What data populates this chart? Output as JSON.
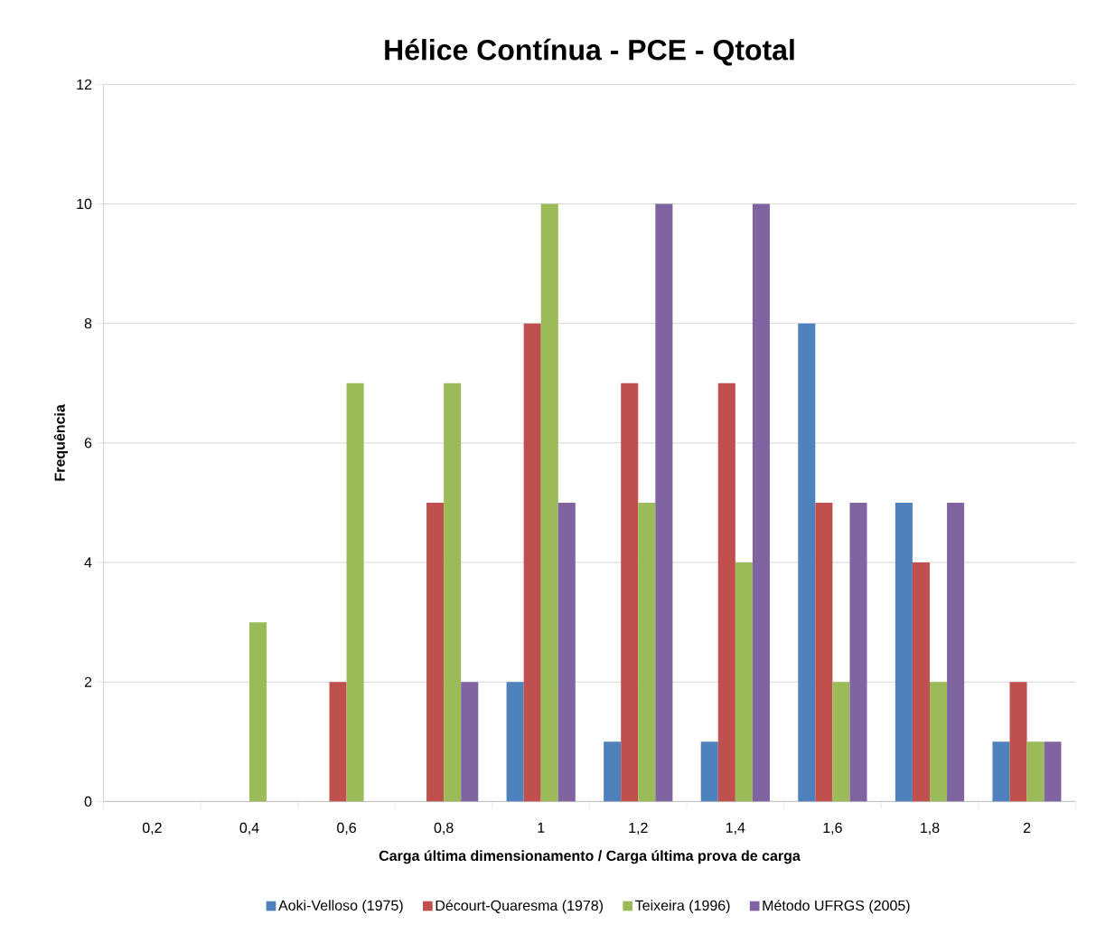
{
  "chart_data": {
    "type": "bar",
    "title": "Hélice Contínua - PCE - Qtotal",
    "xlabel": "Carga última dimensionamento / Carga última prova de carga",
    "ylabel": "Frequência",
    "categories": [
      "0,2",
      "0,4",
      "0,6",
      "0,8",
      "1",
      "1,2",
      "1,4",
      "1,6",
      "1,8",
      "2"
    ],
    "series": [
      {
        "name": "Aoki-Velloso (1975)",
        "color": "#4f81bd",
        "values": [
          0,
          0,
          0,
          0,
          2,
          1,
          1,
          8,
          5,
          1
        ]
      },
      {
        "name": "Décourt-Quaresma (1978)",
        "color": "#c0504d",
        "values": [
          0,
          0,
          2,
          5,
          8,
          7,
          7,
          5,
          4,
          2
        ]
      },
      {
        "name": "Teixeira (1996)",
        "color": "#9bbb59",
        "values": [
          0,
          3,
          7,
          7,
          10,
          5,
          4,
          2,
          2,
          1
        ]
      },
      {
        "name": "Método UFRGS (2005)",
        "color": "#8064a2",
        "values": [
          0,
          0,
          0,
          2,
          5,
          10,
          10,
          5,
          5,
          1
        ]
      }
    ],
    "ylim": [
      0,
      12
    ],
    "yticks": [
      0,
      2,
      4,
      6,
      8,
      10,
      12
    ],
    "grid": "y",
    "legend": "bottom"
  }
}
